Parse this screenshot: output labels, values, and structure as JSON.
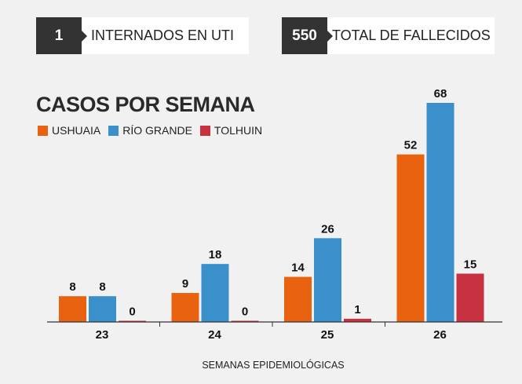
{
  "kpis": [
    {
      "value": "1",
      "label": "INTERNADOS EN UTI"
    },
    {
      "value": "550",
      "label": "TOTAL DE FALLECIDOS"
    }
  ],
  "chart_data": {
    "type": "bar",
    "title": "CASOS POR SEMANA",
    "xlabel": "SEMANAS EPIDEMIOLÓGICAS",
    "categories": [
      "23",
      "24",
      "25",
      "26"
    ],
    "series": [
      {
        "name": "USHUAIA",
        "color": "#e8620f",
        "values": [
          8,
          9,
          14,
          52
        ]
      },
      {
        "name": "RÍO GRANDE",
        "color": "#3a90cb",
        "values": [
          8,
          18,
          26,
          68
        ]
      },
      {
        "name": "TOLHUIN",
        "color": "#c8313f",
        "values": [
          0,
          0,
          1,
          15
        ]
      }
    ],
    "legend": "top-left",
    "grid": false,
    "ylim": [
      0,
      68
    ]
  }
}
